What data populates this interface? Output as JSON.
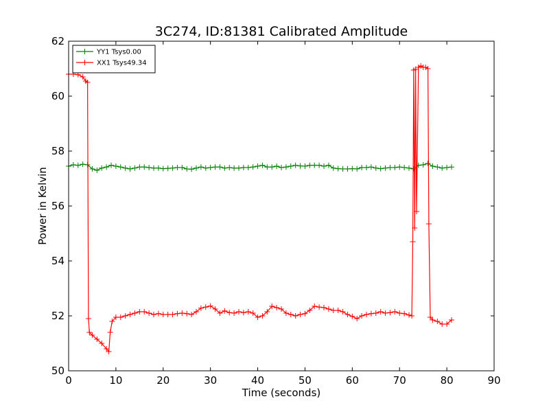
{
  "chart_data": {
    "type": "line",
    "title": "3C274, ID:81381 Calibrated Amplitude",
    "xlabel": "Time (seconds)",
    "ylabel": "Power in Kelvin",
    "xlim": [
      0,
      90
    ],
    "ylim": [
      50,
      62
    ],
    "xticks": [
      0,
      10,
      20,
      30,
      40,
      50,
      60,
      70,
      80,
      90
    ],
    "yticks": [
      50,
      52,
      54,
      56,
      58,
      60,
      62
    ],
    "grid": false,
    "legend_position": "top-left",
    "marker": "plus",
    "series": [
      {
        "name": "YY1 Tsys0.00",
        "color": "#008000",
        "points": [
          [
            0,
            57.45
          ],
          [
            1,
            57.5
          ],
          [
            2,
            57.48
          ],
          [
            3,
            57.52
          ],
          [
            4,
            57.5
          ],
          [
            5,
            57.35
          ],
          [
            6,
            57.3
          ],
          [
            7,
            57.38
          ],
          [
            8,
            57.42
          ],
          [
            9,
            57.48
          ],
          [
            10,
            57.45
          ],
          [
            11,
            57.42
          ],
          [
            12,
            57.38
          ],
          [
            13,
            57.35
          ],
          [
            14,
            57.38
          ],
          [
            15,
            57.42
          ],
          [
            16,
            57.42
          ],
          [
            17,
            57.4
          ],
          [
            18,
            57.38
          ],
          [
            19,
            57.38
          ],
          [
            20,
            57.36
          ],
          [
            21,
            57.37
          ],
          [
            22,
            57.38
          ],
          [
            23,
            57.4
          ],
          [
            24,
            57.4
          ],
          [
            25,
            57.35
          ],
          [
            26,
            57.34
          ],
          [
            27,
            57.38
          ],
          [
            28,
            57.42
          ],
          [
            29,
            57.38
          ],
          [
            30,
            57.4
          ],
          [
            31,
            57.42
          ],
          [
            32,
            57.42
          ],
          [
            33,
            57.38
          ],
          [
            34,
            57.4
          ],
          [
            35,
            57.38
          ],
          [
            36,
            57.38
          ],
          [
            37,
            57.4
          ],
          [
            38,
            57.4
          ],
          [
            39,
            57.42
          ],
          [
            40,
            57.45
          ],
          [
            41,
            57.48
          ],
          [
            42,
            57.42
          ],
          [
            43,
            57.42
          ],
          [
            44,
            57.45
          ],
          [
            45,
            57.4
          ],
          [
            46,
            57.42
          ],
          [
            47,
            57.45
          ],
          [
            48,
            57.48
          ],
          [
            49,
            57.46
          ],
          [
            50,
            57.45
          ],
          [
            51,
            57.48
          ],
          [
            52,
            57.48
          ],
          [
            53,
            57.48
          ],
          [
            54,
            57.45
          ],
          [
            55,
            57.48
          ],
          [
            56,
            57.38
          ],
          [
            57,
            57.36
          ],
          [
            58,
            57.35
          ],
          [
            59,
            57.35
          ],
          [
            60,
            57.36
          ],
          [
            61,
            57.35
          ],
          [
            62,
            57.4
          ],
          [
            63,
            57.4
          ],
          [
            64,
            57.42
          ],
          [
            65,
            57.38
          ],
          [
            66,
            57.36
          ],
          [
            67,
            57.38
          ],
          [
            68,
            57.4
          ],
          [
            69,
            57.4
          ],
          [
            70,
            57.42
          ],
          [
            71,
            57.4
          ],
          [
            72,
            57.38
          ],
          [
            73,
            57.35
          ],
          [
            74,
            57.48
          ],
          [
            75,
            57.5
          ],
          [
            76,
            57.55
          ],
          [
            77,
            57.45
          ],
          [
            78,
            57.42
          ],
          [
            79,
            57.38
          ],
          [
            80,
            57.4
          ],
          [
            81,
            57.42
          ]
        ]
      },
      {
        "name": "XX1 Tsys49.34",
        "color": "#ff0000",
        "points": [
          [
            0,
            60.8
          ],
          [
            1,
            60.8
          ],
          [
            2,
            60.78
          ],
          [
            3,
            60.7
          ],
          [
            3.6,
            60.55
          ],
          [
            4,
            60.5
          ],
          [
            4.2,
            51.9
          ],
          [
            4.4,
            51.4
          ],
          [
            5,
            51.3
          ],
          [
            6,
            51.15
          ],
          [
            7,
            51.0
          ],
          [
            8,
            50.8
          ],
          [
            8.5,
            50.7
          ],
          [
            8.8,
            51.4
          ],
          [
            9.2,
            51.8
          ],
          [
            10,
            51.95
          ],
          [
            11,
            51.95
          ],
          [
            12,
            52.0
          ],
          [
            13,
            52.05
          ],
          [
            14,
            52.1
          ],
          [
            15,
            52.15
          ],
          [
            16,
            52.15
          ],
          [
            17,
            52.1
          ],
          [
            18,
            52.05
          ],
          [
            19,
            52.08
          ],
          [
            20,
            52.05
          ],
          [
            21,
            52.05
          ],
          [
            22,
            52.05
          ],
          [
            23,
            52.08
          ],
          [
            24,
            52.1
          ],
          [
            25,
            52.08
          ],
          [
            26,
            52.05
          ],
          [
            27,
            52.15
          ],
          [
            28,
            52.28
          ],
          [
            29,
            52.32
          ],
          [
            30,
            52.36
          ],
          [
            31,
            52.25
          ],
          [
            32,
            52.1
          ],
          [
            33,
            52.18
          ],
          [
            34,
            52.12
          ],
          [
            35,
            52.1
          ],
          [
            36,
            52.15
          ],
          [
            37,
            52.12
          ],
          [
            38,
            52.15
          ],
          [
            39,
            52.1
          ],
          [
            40,
            51.95
          ],
          [
            41,
            52.0
          ],
          [
            42,
            52.15
          ],
          [
            43,
            52.35
          ],
          [
            44,
            52.3
          ],
          [
            45,
            52.25
          ],
          [
            46,
            52.1
          ],
          [
            47,
            52.05
          ],
          [
            48,
            52.0
          ],
          [
            49,
            52.05
          ],
          [
            50,
            52.08
          ],
          [
            51,
            52.2
          ],
          [
            52,
            52.35
          ],
          [
            53,
            52.32
          ],
          [
            54,
            52.3
          ],
          [
            55,
            52.25
          ],
          [
            56,
            52.2
          ],
          [
            57,
            52.2
          ],
          [
            58,
            52.15
          ],
          [
            59,
            52.05
          ],
          [
            60,
            51.98
          ],
          [
            61,
            51.9
          ],
          [
            62,
            52.0
          ],
          [
            63,
            52.05
          ],
          [
            64,
            52.08
          ],
          [
            65,
            52.1
          ],
          [
            66,
            52.15
          ],
          [
            67,
            52.1
          ],
          [
            68,
            52.12
          ],
          [
            69,
            52.15
          ],
          [
            70,
            52.1
          ],
          [
            71,
            52.08
          ],
          [
            72,
            52.03
          ],
          [
            72.6,
            52.0
          ],
          [
            72.8,
            54.7
          ],
          [
            73.0,
            60.95
          ],
          [
            73.2,
            55.2
          ],
          [
            73.4,
            60.98
          ],
          [
            73.6,
            55.8
          ],
          [
            74,
            61.05
          ],
          [
            74.5,
            61.1
          ],
          [
            75,
            61.05
          ],
          [
            75.5,
            61.05
          ],
          [
            76,
            61.0
          ],
          [
            76.2,
            55.35
          ],
          [
            76.5,
            51.95
          ],
          [
            77,
            51.85
          ],
          [
            78,
            51.8
          ],
          [
            79,
            51.7
          ],
          [
            80,
            51.7
          ],
          [
            81,
            51.85
          ]
        ]
      }
    ]
  }
}
